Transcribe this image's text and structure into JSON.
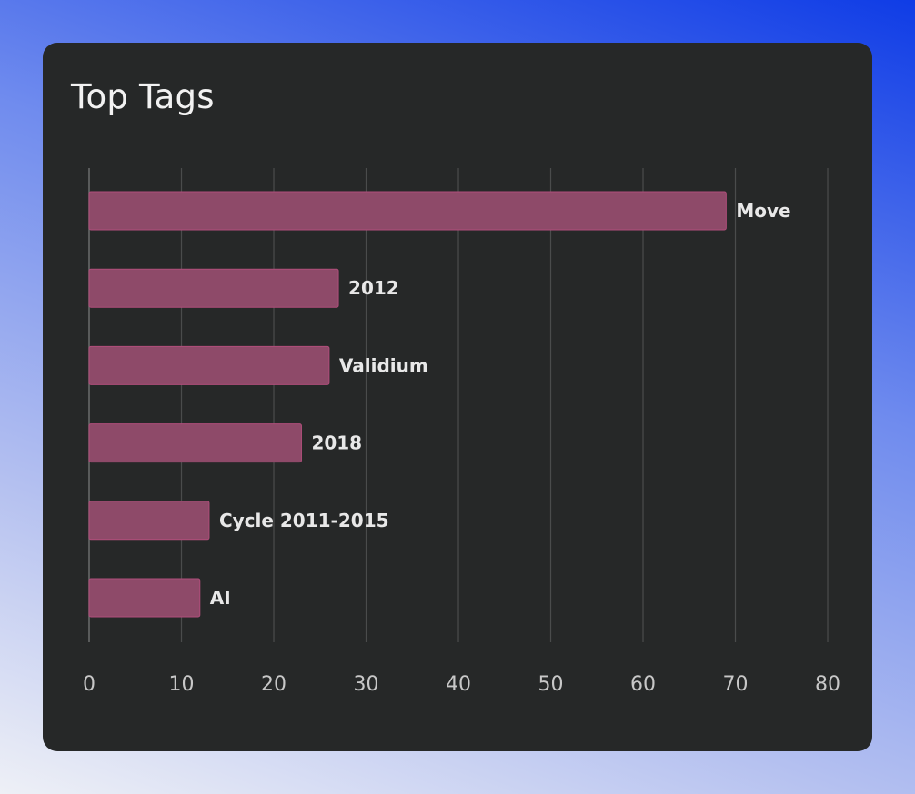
{
  "card": {
    "title": "Top Tags"
  },
  "chart_data": {
    "type": "bar",
    "orientation": "horizontal",
    "title": "Top Tags",
    "categories": [
      "Move",
      "2012",
      "Validium",
      "2018",
      "Cycle 2011-2015",
      "AI"
    ],
    "values": [
      69,
      27,
      26,
      23,
      13,
      12
    ],
    "xlim": [
      0,
      80
    ],
    "xticks": [
      0,
      10,
      20,
      30,
      40,
      50,
      60,
      70,
      80
    ],
    "grid": "vertical",
    "bar_color": "#8e4a69",
    "background": "#262828"
  }
}
